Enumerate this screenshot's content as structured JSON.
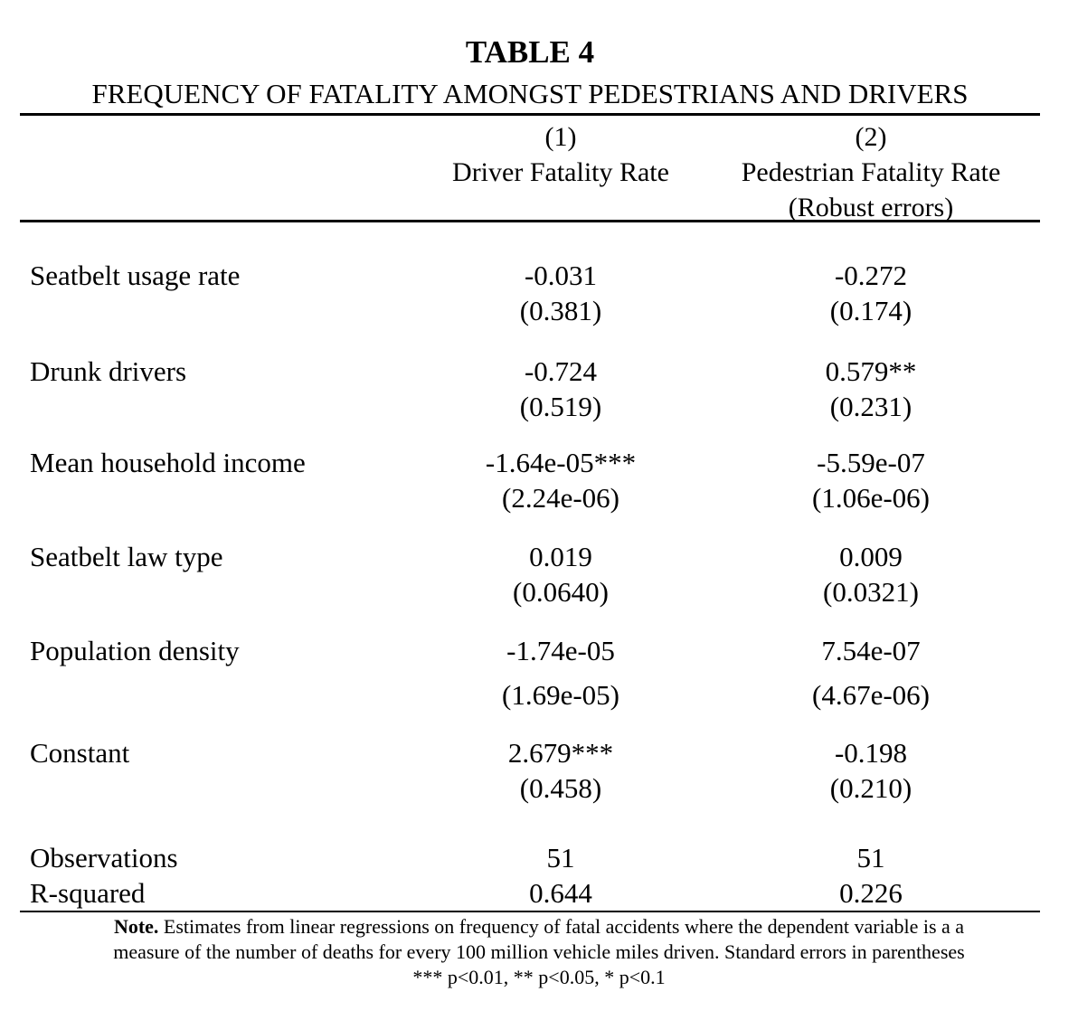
{
  "title": "TABLE 4",
  "subtitle": "FREQUENCY OF FATALITY AMONGST PEDESTRIANS AND DRIVERS",
  "columns": [
    {
      "number": "(1)",
      "name": "Driver Fatality Rate",
      "extra": ""
    },
    {
      "number": "(2)",
      "name": "Pedestrian Fatality Rate",
      "extra": "(Robust errors)"
    }
  ],
  "rows": [
    {
      "label": "Seatbelt usage rate",
      "c1": "-0.031",
      "c1_se": "(0.381)",
      "c2": "-0.272",
      "c2_se": "(0.174)"
    },
    {
      "label": "Drunk drivers",
      "c1": "-0.724",
      "c1_se": "(0.519)",
      "c2": "0.579**",
      "c2_se": "(0.231)"
    },
    {
      "label": "Mean household income",
      "c1": "-1.64e-05***",
      "c1_se": "(2.24e-06)",
      "c2": "-5.59e-07",
      "c2_se": "(1.06e-06)"
    },
    {
      "label": "Seatbelt law type",
      "c1": "0.019",
      "c1_se": "(0.0640)",
      "c2": "0.009",
      "c2_se": "(0.0321)"
    },
    {
      "label": "Population density",
      "c1": "-1.74e-05",
      "c1_se": "(1.69e-05)",
      "c2": "7.54e-07",
      "c2_se": "(4.67e-06)"
    },
    {
      "label": "Constant",
      "c1": "2.679***",
      "c1_se": "(0.458)",
      "c2": "-0.198",
      "c2_se": "(0.210)"
    }
  ],
  "stats": [
    {
      "label": "Observations",
      "c1": "51",
      "c2": "51"
    },
    {
      "label": "R-squared",
      "c1": "0.644",
      "c2": "0.226"
    }
  ],
  "note": {
    "lead": "Note.",
    "line1": "Estimates from linear regressions on frequency of fatal accidents where the dependent variable is a a",
    "line2": "measure of the number of deaths for every 100 million vehicle miles driven. Standard errors in parentheses",
    "line3": "*** p<0.01, ** p<0.05, * p<0.1"
  }
}
